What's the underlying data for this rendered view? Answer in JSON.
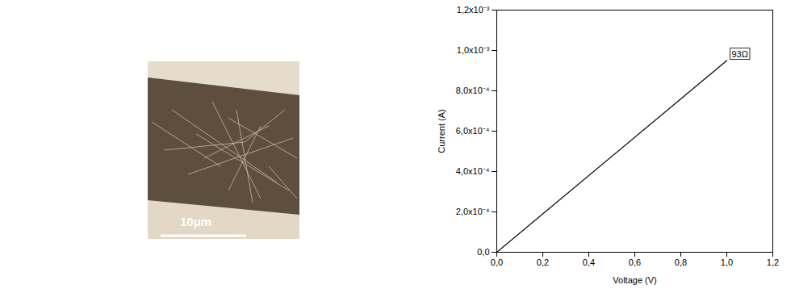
{
  "chart_data": {
    "type": "line",
    "x_label": "Voltage (V)",
    "y_label": "Current (A)",
    "x": [
      0,
      1.0
    ],
    "values": [
      0,
      0.00095
    ],
    "color": "#000000",
    "xlim": [
      0,
      1.2
    ],
    "ylim": [
      0,
      0.0012
    ],
    "xticks": [
      {
        "value": 0,
        "label": "0,0"
      },
      {
        "value": 0.2,
        "label": "0,2"
      },
      {
        "value": 0.4,
        "label": "0,4"
      },
      {
        "value": 0.6,
        "label": "0,6"
      },
      {
        "value": 0.8,
        "label": "0,8"
      },
      {
        "value": 1.0,
        "label": "1,0"
      },
      {
        "value": 1.2,
        "label": "1,2"
      }
    ],
    "yticks": [
      {
        "value": 0,
        "label": "0,0"
      },
      {
        "value": 0.0002,
        "label": "2,0x10⁻⁴"
      },
      {
        "value": 0.0004,
        "label": "4,0x10⁻⁴"
      },
      {
        "value": 0.0006,
        "label": "6,0x10⁻⁴"
      },
      {
        "value": 0.0008,
        "label": "8,0x10⁻⁴"
      },
      {
        "value": 0.001,
        "label": "1,0x10⁻³"
      },
      {
        "value": 0.0012,
        "label": "1,2x10⁻³"
      }
    ],
    "annotations": [
      "93Ω"
    ],
    "grid": false
  },
  "image": {
    "scale_bar": "10μm"
  }
}
